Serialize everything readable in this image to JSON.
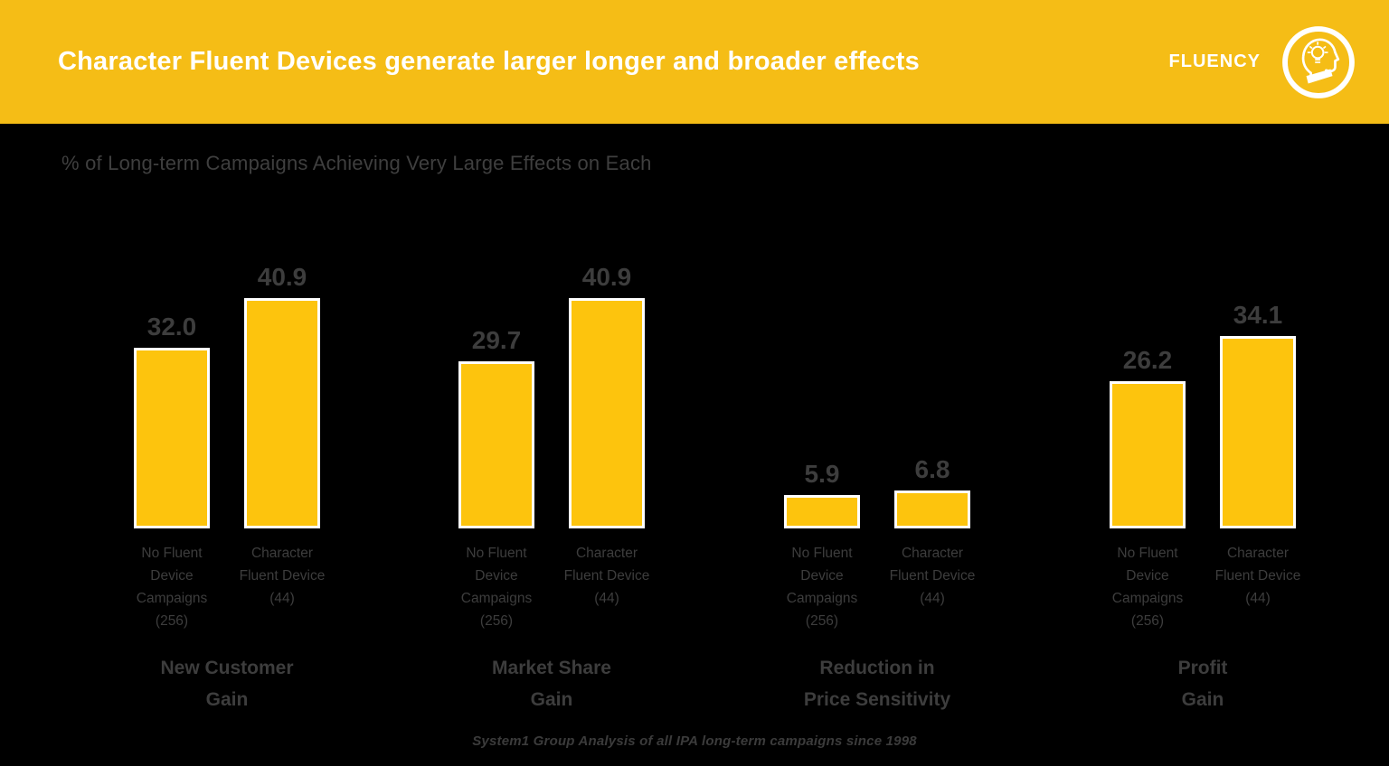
{
  "header": {
    "title": "Character Fluent Devices generate larger longer and broader effects",
    "brand": "FLUENCY",
    "brand_logo_icon": "head-with-lightbulb-icon",
    "background_color": "#F5BD16",
    "text_color": "#FFFFFF"
  },
  "subtitle": "% of Long-term Campaigns Achieving Very Large Effects on Each",
  "chart_data": {
    "type": "bar",
    "title": "% of Long-term Campaigns Achieving Very Large Effects on Each",
    "unit": "% of campaigns",
    "ylim": [
      0,
      45
    ],
    "grid": false,
    "legend_position": "none",
    "bar_color": "#FDC40D",
    "bar_border_color": "#FFFFFF",
    "label_color": "#3D3D3D",
    "categories": [
      "No Fluent\nDevice\nCampaigns\n(256)",
      "Character\nFluent Device\n(44)"
    ],
    "groups": [
      {
        "title": "New Customer\nGain",
        "values": [
          32.0,
          40.9
        ]
      },
      {
        "title": "Market Share\nGain",
        "values": [
          29.7,
          40.9
        ]
      },
      {
        "title": "Reduction in\nPrice Sensitivity",
        "values": [
          5.9,
          6.8
        ]
      },
      {
        "title": "Profit\nGain",
        "values": [
          26.2,
          34.1
        ]
      }
    ],
    "series": [
      {
        "name": "No Fluent Device Campaigns (256)",
        "values": [
          32.0,
          29.7,
          5.9,
          26.2
        ]
      },
      {
        "name": "Character Fluent Device (44)",
        "values": [
          40.9,
          40.9,
          6.8,
          34.1
        ]
      }
    ],
    "panel_titles": [
      "New Customer Gain",
      "Market Share Gain",
      "Reduction in Price Sensitivity",
      "Profit Gain"
    ]
  },
  "footer": {
    "source": "System1 Group Analysis of all IPA long-term campaigns since 1998"
  }
}
